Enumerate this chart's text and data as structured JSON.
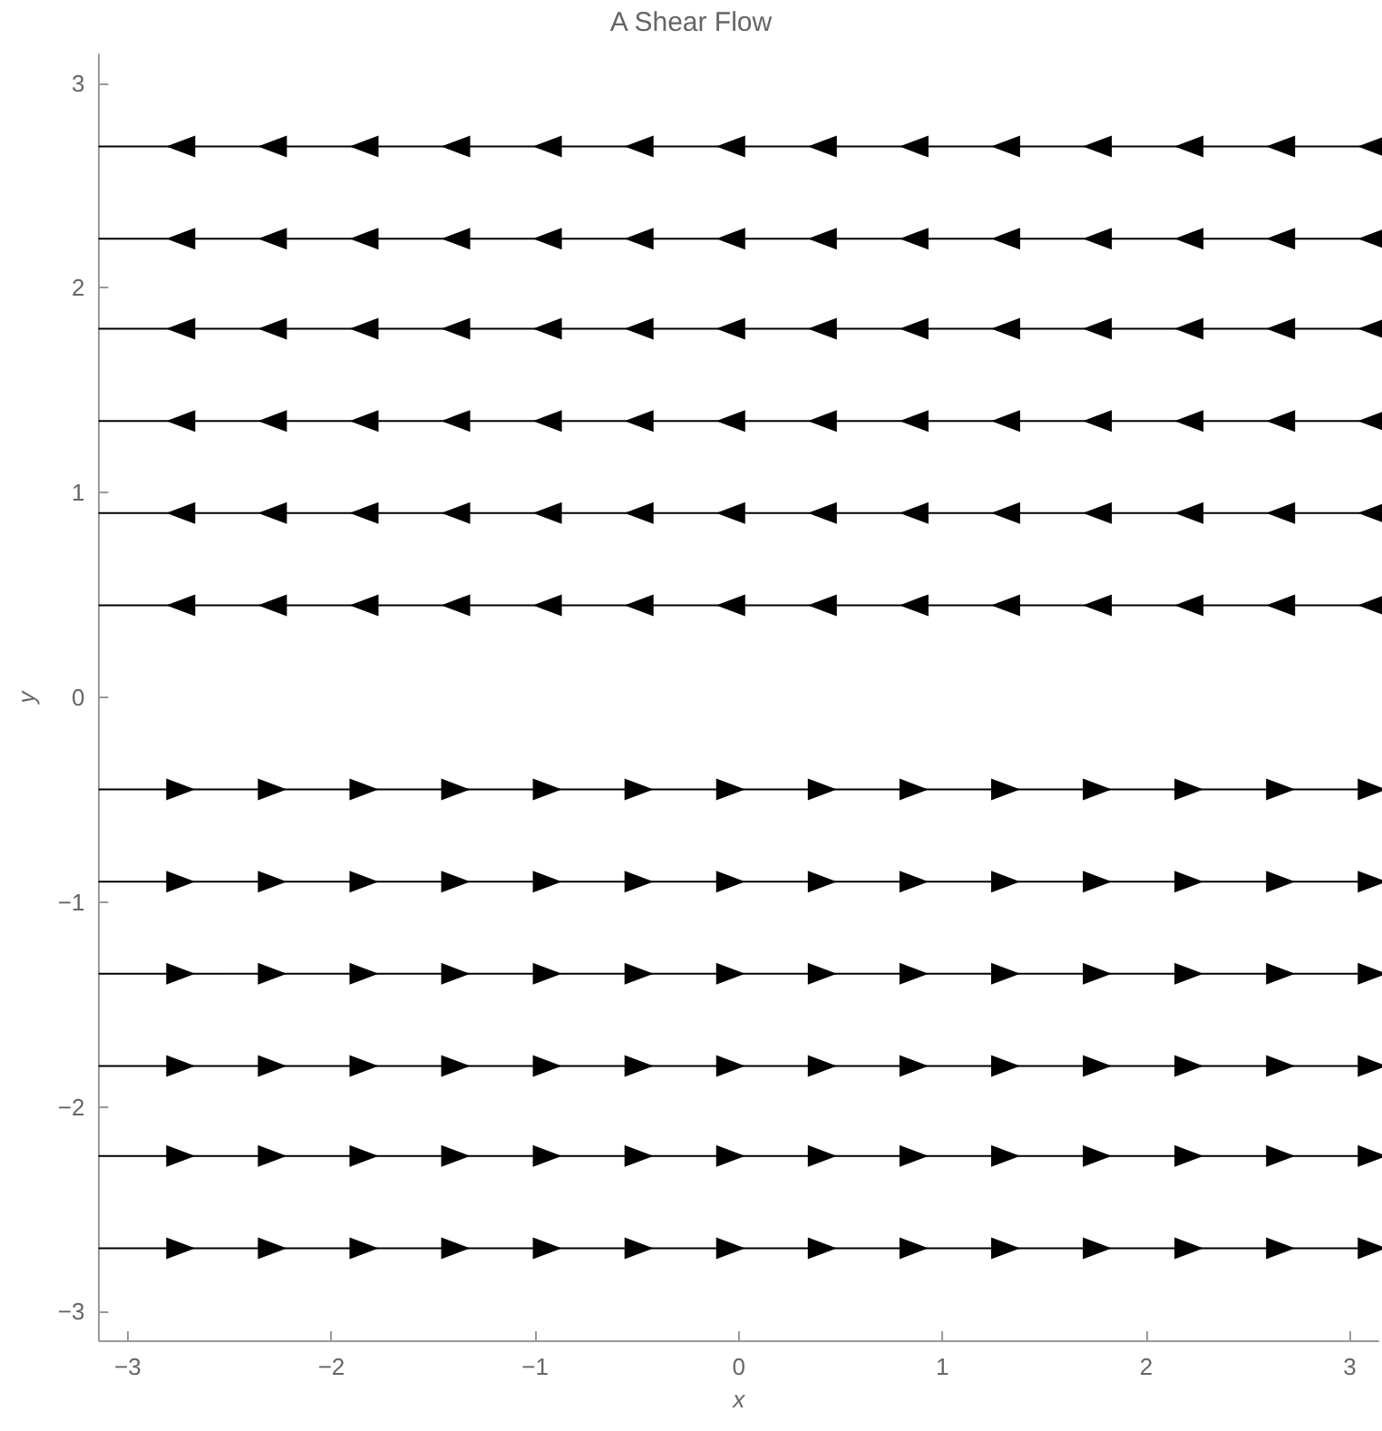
{
  "chart_data": {
    "type": "line",
    "title": "A Shear Flow",
    "xlabel": "x",
    "ylabel": "y",
    "xlim": [
      -3.14,
      3.14
    ],
    "ylim": [
      -3.14,
      3.14
    ],
    "xticks": [
      -3,
      -2,
      -1,
      0,
      1,
      2,
      3
    ],
    "yticks": [
      -3,
      -2,
      -1,
      0,
      1,
      2,
      3
    ],
    "grid": false,
    "marker": "triangle",
    "line_style": "solid",
    "x": [
      -3.14,
      -2.74,
      -2.29,
      -1.84,
      -1.39,
      -0.94,
      -0.49,
      -0.04,
      0.41,
      0.86,
      1.31,
      1.76,
      2.21,
      2.66,
      3.11,
      3.14
    ],
    "series": [
      {
        "color": "#000000",
        "values": [
          2.69,
          2.69,
          2.69,
          2.69,
          2.69,
          2.69,
          2.69,
          2.69,
          2.69,
          2.69,
          2.69,
          2.69,
          2.69,
          2.69,
          2.69,
          2.69
        ]
      },
      {
        "color": "#000000",
        "values": [
          2.24,
          2.24,
          2.24,
          2.24,
          2.24,
          2.24,
          2.24,
          2.24,
          2.24,
          2.24,
          2.24,
          2.24,
          2.24,
          2.24,
          2.24,
          2.24
        ]
      },
      {
        "color": "#000000",
        "values": [
          1.8,
          1.8,
          1.8,
          1.8,
          1.8,
          1.8,
          1.8,
          1.8,
          1.8,
          1.8,
          1.8,
          1.8,
          1.8,
          1.8,
          1.8,
          1.8
        ]
      },
      {
        "color": "#000000",
        "values": [
          1.35,
          1.35,
          1.35,
          1.35,
          1.35,
          1.35,
          1.35,
          1.35,
          1.35,
          1.35,
          1.35,
          1.35,
          1.35,
          1.35,
          1.35,
          1.35
        ]
      },
      {
        "color": "#000000",
        "values": [
          0.9,
          0.9,
          0.9,
          0.9,
          0.9,
          0.9,
          0.9,
          0.9,
          0.9,
          0.9,
          0.9,
          0.9,
          0.9,
          0.9,
          0.9,
          0.9
        ]
      },
      {
        "color": "#000000",
        "values": [
          0.45,
          0.45,
          0.45,
          0.45,
          0.45,
          0.45,
          0.45,
          0.45,
          0.45,
          0.45,
          0.45,
          0.45,
          0.45,
          0.45,
          0.45,
          0.45
        ]
      },
      {
        "color": "#000000",
        "values": [
          -0.45,
          -0.45,
          -0.45,
          -0.45,
          -0.45,
          -0.45,
          -0.45,
          -0.45,
          -0.45,
          -0.45,
          -0.45,
          -0.45,
          -0.45,
          -0.45,
          -0.45,
          -0.45
        ]
      },
      {
        "color": "#000000",
        "values": [
          -0.9,
          -0.9,
          -0.9,
          -0.9,
          -0.9,
          -0.9,
          -0.9,
          -0.9,
          -0.9,
          -0.9,
          -0.9,
          -0.9,
          -0.9,
          -0.9,
          -0.9,
          -0.9
        ]
      },
      {
        "color": "#000000",
        "values": [
          -1.35,
          -1.35,
          -1.35,
          -1.35,
          -1.35,
          -1.35,
          -1.35,
          -1.35,
          -1.35,
          -1.35,
          -1.35,
          -1.35,
          -1.35,
          -1.35,
          -1.35,
          -1.35
        ]
      },
      {
        "color": "#000000",
        "values": [
          -1.8,
          -1.8,
          -1.8,
          -1.8,
          -1.8,
          -1.8,
          -1.8,
          -1.8,
          -1.8,
          -1.8,
          -1.8,
          -1.8,
          -1.8,
          -1.8,
          -1.8,
          -1.8
        ]
      },
      {
        "color": "#000000",
        "values": [
          -2.24,
          -2.24,
          -2.24,
          -2.24,
          -2.24,
          -2.24,
          -2.24,
          -2.24,
          -2.24,
          -2.24,
          -2.24,
          -2.24,
          -2.24,
          -2.24,
          -2.24,
          -2.24
        ]
      },
      {
        "color": "#000000",
        "values": [
          -2.69,
          -2.69,
          -2.69,
          -2.69,
          -2.69,
          -2.69,
          -2.69,
          -2.69,
          -2.69,
          -2.69,
          -2.69,
          -2.69,
          -2.69,
          -2.69,
          -2.69,
          -2.69
        ]
      }
    ]
  }
}
